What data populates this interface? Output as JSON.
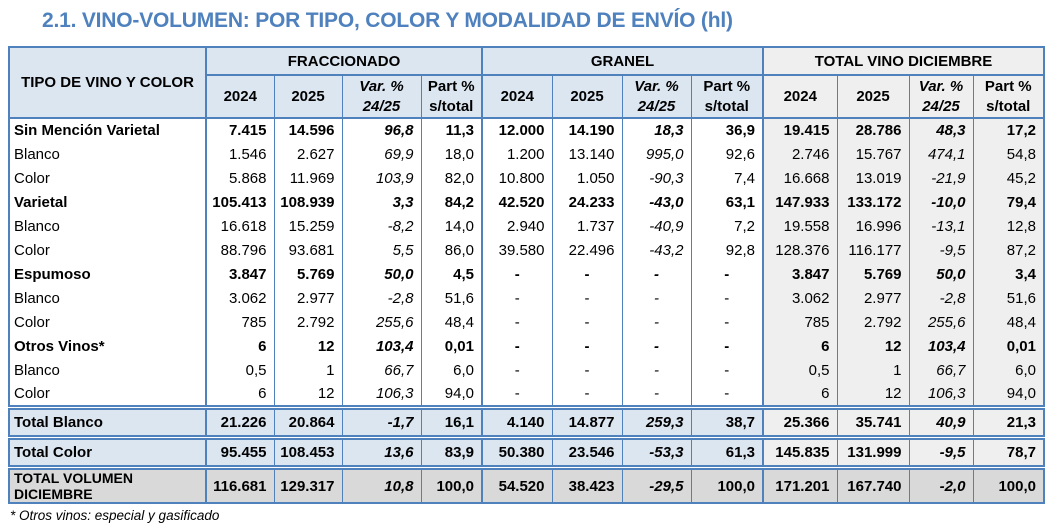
{
  "title": "2.1. VINO-VOLUMEN: POR TIPO, COLOR Y MODALIDAD DE ENVÍO (hl)",
  "footnote": "* Otros vinos: especial y gasificado",
  "colors": {
    "title_text": "#4E81BD",
    "border_blue": "#4F81BD",
    "header_blue_bg": "#DCE6F1",
    "total_section_gray_bg": "#EFEFEF",
    "grand_total_gray_bg": "#D9D9D9"
  },
  "table": {
    "corner_header": "TIPO DE VINO Y COLOR",
    "groups": [
      {
        "label": "FRACCIONADO"
      },
      {
        "label": "GRANEL"
      },
      {
        "label": "TOTAL VINO DICIEMBRE"
      }
    ],
    "sub_headers": [
      {
        "text": "2024",
        "italic": false
      },
      {
        "text": "2025",
        "italic": false
      },
      {
        "text": "Var. %\n24/25",
        "italic": true
      },
      {
        "text": "Part %\ns/total",
        "italic": false
      }
    ],
    "rows": [
      {
        "label": "Sin Mención Varietal",
        "style": "parent",
        "values": [
          "7.415",
          "14.596",
          "96,8",
          "11,3",
          "12.000",
          "14.190",
          "18,3",
          "36,9",
          "19.415",
          "28.786",
          "48,3",
          "17,2"
        ]
      },
      {
        "label": "Blanco",
        "style": "child",
        "values": [
          "1.546",
          "2.627",
          "69,9",
          "18,0",
          "1.200",
          "13.140",
          "995,0",
          "92,6",
          "2.746",
          "15.767",
          "474,1",
          "54,8"
        ]
      },
      {
        "label": "Color",
        "style": "child",
        "values": [
          "5.868",
          "11.969",
          "103,9",
          "82,0",
          "10.800",
          "1.050",
          "-90,3",
          "7,4",
          "16.668",
          "13.019",
          "-21,9",
          "45,2"
        ]
      },
      {
        "label": "Varietal",
        "style": "parent",
        "values": [
          "105.413",
          "108.939",
          "3,3",
          "84,2",
          "42.520",
          "24.233",
          "-43,0",
          "63,1",
          "147.933",
          "133.172",
          "-10,0",
          "79,4"
        ]
      },
      {
        "label": "Blanco",
        "style": "child",
        "values": [
          "16.618",
          "15.259",
          "-8,2",
          "14,0",
          "2.940",
          "1.737",
          "-40,9",
          "7,2",
          "19.558",
          "16.996",
          "-13,1",
          "12,8"
        ]
      },
      {
        "label": "Color",
        "style": "child",
        "values": [
          "88.796",
          "93.681",
          "5,5",
          "86,0",
          "39.580",
          "22.496",
          "-43,2",
          "92,8",
          "128.376",
          "116.177",
          "-9,5",
          "87,2"
        ]
      },
      {
        "label": "Espumoso",
        "style": "parent",
        "values": [
          "3.847",
          "5.769",
          "50,0",
          "4,5",
          "-",
          "-",
          "-",
          "-",
          "3.847",
          "5.769",
          "50,0",
          "3,4"
        ]
      },
      {
        "label": "Blanco",
        "style": "child",
        "values": [
          "3.062",
          "2.977",
          "-2,8",
          "51,6",
          "-",
          "-",
          "-",
          "-",
          "3.062",
          "2.977",
          "-2,8",
          "51,6"
        ]
      },
      {
        "label": "Color",
        "style": "child",
        "values": [
          "785",
          "2.792",
          "255,6",
          "48,4",
          "-",
          "-",
          "-",
          "-",
          "785",
          "2.792",
          "255,6",
          "48,4"
        ]
      },
      {
        "label": "Otros Vinos*",
        "style": "parent",
        "values": [
          "6",
          "12",
          "103,4",
          "0,01",
          "-",
          "-",
          "-",
          "-",
          "6",
          "12",
          "103,4",
          "0,01"
        ]
      },
      {
        "label": "Blanco",
        "style": "child",
        "values": [
          "0,5",
          "1",
          "66,7",
          "6,0",
          "-",
          "-",
          "-",
          "-",
          "0,5",
          "1",
          "66,7",
          "6,0"
        ]
      },
      {
        "label": "Color",
        "style": "child",
        "values": [
          "6",
          "12",
          "106,3",
          "94,0",
          "-",
          "-",
          "-",
          "-",
          "6",
          "12",
          "106,3",
          "94,0"
        ]
      },
      {
        "label": "Total Blanco",
        "style": "total",
        "values": [
          "21.226",
          "20.864",
          "-1,7",
          "16,1",
          "4.140",
          "14.877",
          "259,3",
          "38,7",
          "25.366",
          "35.741",
          "40,9",
          "21,3"
        ]
      },
      {
        "label": "Total Color",
        "style": "total",
        "values": [
          "95.455",
          "108.453",
          "13,6",
          "83,9",
          "50.380",
          "23.546",
          "-53,3",
          "61,3",
          "145.835",
          "131.999",
          "-9,5",
          "78,7"
        ]
      },
      {
        "label": "TOTAL VOLUMEN DICIEMBRE",
        "style": "grand",
        "values": [
          "116.681",
          "129.317",
          "10,8",
          "100,0",
          "54.520",
          "38.423",
          "-29,5",
          "100,0",
          "171.201",
          "167.740",
          "-2,0",
          "100,0"
        ]
      }
    ]
  }
}
